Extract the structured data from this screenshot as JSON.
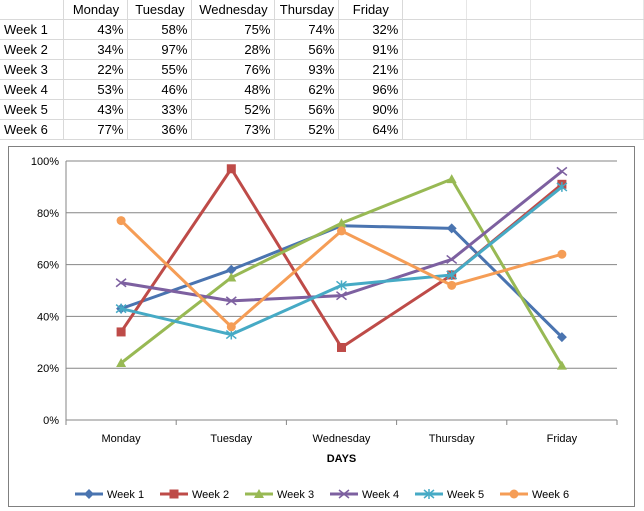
{
  "sheet": {
    "columns": [
      "",
      "Monday",
      "Tuesday",
      "Wednesday",
      "Thursday",
      "Friday"
    ],
    "rows": [
      {
        "label": "Week 1",
        "values": [
          "43%",
          "58%",
          "75%",
          "74%",
          "32%"
        ]
      },
      {
        "label": "Week 2",
        "values": [
          "34%",
          "97%",
          "28%",
          "56%",
          "91%"
        ]
      },
      {
        "label": "Week 3",
        "values": [
          "22%",
          "55%",
          "76%",
          "93%",
          "21%"
        ]
      },
      {
        "label": "Week 4",
        "values": [
          "53%",
          "46%",
          "48%",
          "62%",
          "96%"
        ]
      },
      {
        "label": "Week 5",
        "values": [
          "43%",
          "33%",
          "52%",
          "56%",
          "90%"
        ]
      },
      {
        "label": "Week 6",
        "values": [
          "77%",
          "36%",
          "73%",
          "52%",
          "64%"
        ]
      }
    ]
  },
  "chart_data": {
    "type": "line",
    "title": "",
    "xlabel": "DAYS",
    "ylabel": "",
    "categories": [
      "Monday",
      "Tuesday",
      "Wednesday",
      "Thursday",
      "Friday"
    ],
    "ylim": [
      0,
      100
    ],
    "yticks": [
      0,
      20,
      40,
      60,
      80,
      100
    ],
    "ytick_labels": [
      "0%",
      "20%",
      "40%",
      "60%",
      "80%",
      "100%"
    ],
    "grid": true,
    "legend": "bottom",
    "series": [
      {
        "name": "Week 1",
        "values": [
          43,
          58,
          75,
          74,
          32
        ],
        "color": "#4a74b0",
        "marker": "diamond"
      },
      {
        "name": "Week 2",
        "values": [
          34,
          97,
          28,
          56,
          91
        ],
        "color": "#be4b48",
        "marker": "square"
      },
      {
        "name": "Week 3",
        "values": [
          22,
          55,
          76,
          93,
          21
        ],
        "color": "#98b954",
        "marker": "triangle"
      },
      {
        "name": "Week 4",
        "values": [
          53,
          46,
          48,
          62,
          96
        ],
        "color": "#7d60a0",
        "marker": "x"
      },
      {
        "name": "Week 5",
        "values": [
          43,
          33,
          52,
          56,
          90
        ],
        "color": "#46aac5",
        "marker": "star"
      },
      {
        "name": "Week 6",
        "values": [
          77,
          36,
          73,
          52,
          64
        ],
        "color": "#f59d56",
        "marker": "circle"
      }
    ]
  }
}
